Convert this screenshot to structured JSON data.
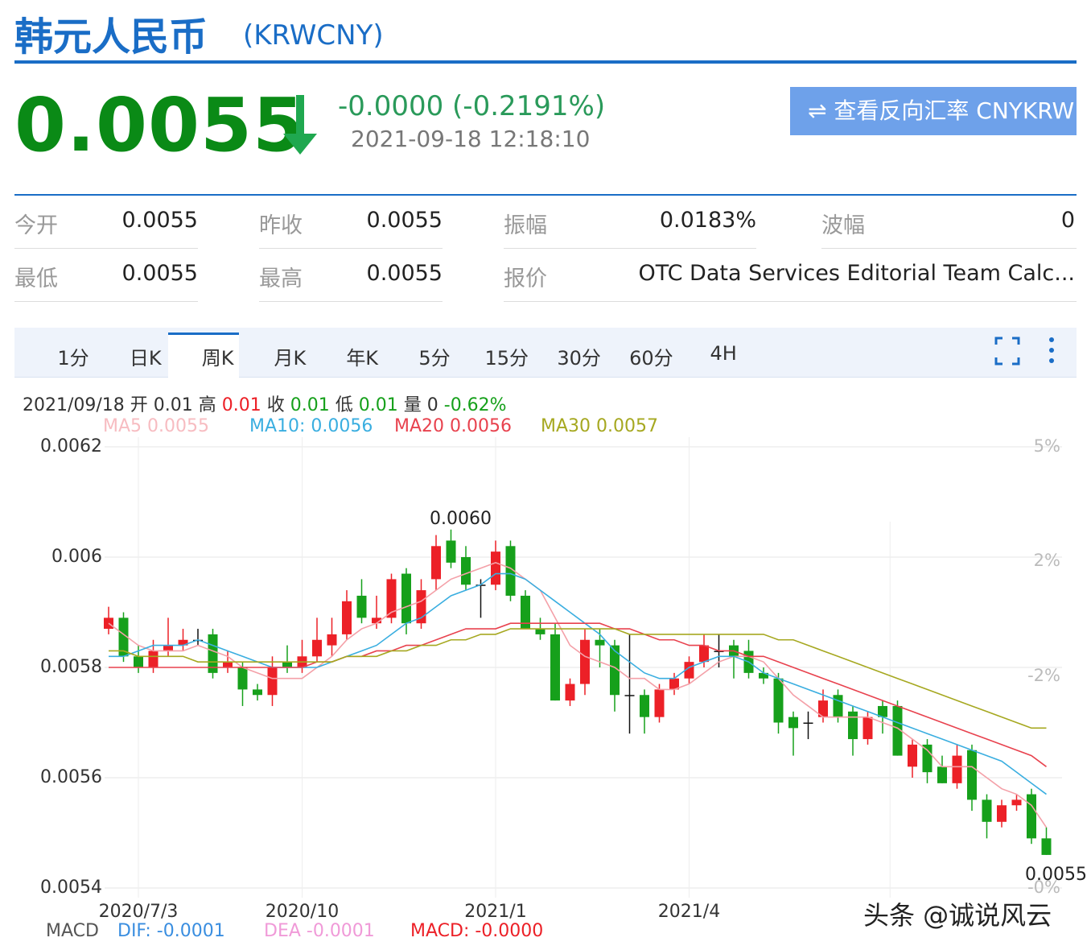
{
  "header": {
    "title": "韩元人民币",
    "code": "(KRWCNY)",
    "price": "0.0055",
    "change": "-0.0000 (-0.2191%)",
    "time": "2021-09-18 12:18:10",
    "button": "查看反向汇率 CNYKRW"
  },
  "stats": {
    "rows": [
      [
        "今开",
        "0.0055",
        "昨收",
        "0.0055",
        "振幅",
        "0.0183%",
        "波幅",
        "0"
      ],
      [
        "最低",
        "0.0055",
        "最高",
        "0.0055",
        "报价",
        "OTC Data Services Editorial Team Calc..."
      ]
    ]
  },
  "tabs": {
    "items": [
      "1分",
      "日K",
      "周K",
      "月K",
      "年K",
      "5分",
      "15分",
      "30分",
      "60分",
      "4H"
    ],
    "active": 2
  },
  "ohlc_info": [
    "2021/09/18 开 0.01 高",
    "0.01",
    "收",
    "0.01",
    "低",
    "0.01",
    "量 0",
    "-0.62%"
  ],
  "macd": [
    "MACD",
    "DIF: -0.0001",
    "DEA -0.0001",
    "MACD: -0.0000"
  ],
  "right_axis_labels": [
    "5%",
    "2%",
    "-2%",
    "-0%"
  ],
  "watermark": "头条 @诚说风云",
  "chart_data": {
    "type": "candlestick",
    "ylim": [
      0.0054,
      0.0062
    ],
    "yticks": [
      0.0062,
      0.006,
      0.0058,
      0.0056,
      0.0054
    ],
    "grid": true,
    "up_color": "#ec2027",
    "down_color": "#16a01b",
    "flat_color": "#111111",
    "categories": [
      null,
      null,
      "2020/7/3",
      null,
      null,
      null,
      null,
      null,
      null,
      null,
      null,
      null,
      null,
      "2020/10",
      null,
      null,
      null,
      null,
      null,
      null,
      null,
      null,
      null,
      null,
      null,
      null,
      "2021/1",
      null,
      null,
      null,
      null,
      null,
      null,
      null,
      null,
      null,
      null,
      null,
      null,
      "2021/4",
      null,
      null,
      null,
      null,
      null,
      null,
      null,
      null,
      null,
      null,
      null,
      null,
      null,
      null,
      null,
      null,
      null,
      null,
      null,
      null,
      null,
      null,
      null,
      null
    ],
    "open": [
      0.00587,
      0.00589,
      0.00582,
      0.0058,
      0.00583,
      0.00584,
      0.00585,
      0.00586,
      0.0058,
      0.0058,
      0.00576,
      0.00575,
      0.00581,
      0.0058,
      0.00582,
      0.00584,
      0.00586,
      0.00593,
      0.00588,
      0.00589,
      0.00597,
      0.00588,
      0.00596,
      0.00603,
      0.006,
      0.00595,
      0.00595,
      0.00602,
      0.00593,
      0.00587,
      0.00586,
      0.00574,
      0.00577,
      0.00585,
      0.00584,
      0.00575,
      0.00575,
      0.00571,
      0.00576,
      0.00578,
      0.00581,
      0.00583,
      0.00584,
      0.00583,
      0.00579,
      0.00578,
      0.00571,
      0.0057,
      0.00571,
      0.00575,
      0.00572,
      0.00567,
      0.00573,
      0.00573,
      0.00562,
      0.00566,
      0.00562,
      0.00559,
      0.00565,
      0.00556,
      0.00552,
      0.00555,
      0.00557,
      0.00549
    ],
    "high": [
      0.00591,
      0.0059,
      0.00584,
      0.00585,
      0.00589,
      0.00587,
      0.00587,
      0.00587,
      0.00583,
      0.00581,
      0.00577,
      0.00582,
      0.00584,
      0.00585,
      0.00589,
      0.00589,
      0.00594,
      0.00596,
      0.00593,
      0.00597,
      0.00598,
      0.00596,
      0.00604,
      0.00605,
      0.00602,
      0.00596,
      0.00603,
      0.00603,
      0.00594,
      0.00589,
      0.00588,
      0.00578,
      0.00587,
      0.00587,
      0.00585,
      0.00586,
      0.00576,
      0.00577,
      0.00579,
      0.00582,
      0.00586,
      0.00586,
      0.00585,
      0.00585,
      0.0058,
      0.00579,
      0.00572,
      0.00572,
      0.00576,
      0.00576,
      0.00573,
      0.00572,
      0.00574,
      0.00574,
      0.00567,
      0.00567,
      0.00564,
      0.00566,
      0.00566,
      0.00557,
      0.00556,
      0.00557,
      0.00558,
      0.00551
    ],
    "low": [
      0.00586,
      0.00581,
      0.00579,
      0.00579,
      0.00582,
      0.00583,
      0.00584,
      0.00578,
      0.00579,
      0.00573,
      0.00574,
      0.00573,
      0.00579,
      0.00579,
      0.00581,
      0.00582,
      0.00585,
      0.00588,
      0.00587,
      0.00588,
      0.00586,
      0.00587,
      0.00594,
      0.00598,
      0.00594,
      0.00589,
      0.00594,
      0.00592,
      0.00587,
      0.00585,
      0.00574,
      0.00573,
      0.00575,
      0.0058,
      0.00572,
      0.00568,
      0.00568,
      0.0057,
      0.00575,
      0.00577,
      0.0058,
      0.0058,
      0.00578,
      0.00578,
      0.00577,
      0.00568,
      0.00564,
      0.00567,
      0.0057,
      0.0057,
      0.00564,
      0.00566,
      0.00568,
      0.00564,
      0.0056,
      0.00559,
      0.00559,
      0.00558,
      0.00554,
      0.00549,
      0.00551,
      0.00554,
      0.00548,
      0.00546
    ],
    "close": [
      0.00589,
      0.00582,
      0.0058,
      0.00583,
      0.00584,
      0.00585,
      0.00585,
      0.00579,
      0.00581,
      0.00576,
      0.00575,
      0.0058,
      0.0058,
      0.00582,
      0.00585,
      0.00586,
      0.00592,
      0.00589,
      0.00589,
      0.00596,
      0.00588,
      0.00594,
      0.00602,
      0.00599,
      0.00595,
      0.00595,
      0.00601,
      0.00593,
      0.00587,
      0.00586,
      0.00574,
      0.00577,
      0.00585,
      0.00584,
      0.00575,
      0.00575,
      0.00571,
      0.00576,
      0.00578,
      0.00581,
      0.00584,
      0.00583,
      0.00582,
      0.00579,
      0.00578,
      0.0057,
      0.00569,
      0.0057,
      0.00574,
      0.00571,
      0.00567,
      0.00571,
      0.00571,
      0.00564,
      0.00566,
      0.00561,
      0.00559,
      0.00564,
      0.00556,
      0.00552,
      0.00555,
      0.00556,
      0.00549,
      0.00546
    ],
    "series": [
      {
        "name": "MA5 0.0055",
        "color": "#f4a0a8",
        "values": [
          0.00588,
          0.00586,
          0.00584,
          0.00583,
          0.00583,
          0.00583,
          0.00584,
          0.00583,
          0.00582,
          0.0058,
          0.00579,
          0.00578,
          0.00578,
          0.00578,
          0.0058,
          0.00582,
          0.00585,
          0.00587,
          0.00588,
          0.0059,
          0.00591,
          0.00592,
          0.00594,
          0.00596,
          0.00597,
          0.00598,
          0.00599,
          0.00598,
          0.00596,
          0.00594,
          0.00589,
          0.00584,
          0.00582,
          0.00581,
          0.0058,
          0.00578,
          0.00578,
          0.00576,
          0.00576,
          0.00577,
          0.00579,
          0.00581,
          0.00582,
          0.00582,
          0.00581,
          0.00578,
          0.00575,
          0.00573,
          0.00571,
          0.00571,
          0.00571,
          0.00571,
          0.0057,
          0.00569,
          0.00567,
          0.00565,
          0.00562,
          0.00562,
          0.00562,
          0.0056,
          0.00558,
          0.00557,
          0.00555,
          0.00551
        ]
      },
      {
        "name": "MA10: 0.0056",
        "color": "#3aaee0",
        "values": [
          0.00582,
          0.00582,
          0.00583,
          0.00584,
          0.00584,
          0.00584,
          0.00585,
          0.00584,
          0.00583,
          0.00582,
          0.00581,
          0.0058,
          0.0058,
          0.0058,
          0.0058,
          0.00581,
          0.00582,
          0.00583,
          0.00584,
          0.00586,
          0.00588,
          0.00589,
          0.00591,
          0.00593,
          0.00594,
          0.00595,
          0.00597,
          0.00597,
          0.00596,
          0.00594,
          0.00592,
          0.0059,
          0.00588,
          0.00586,
          0.00583,
          0.00581,
          0.00579,
          0.00578,
          0.00578,
          0.0058,
          0.00581,
          0.00582,
          0.00582,
          0.00581,
          0.00579,
          0.00578,
          0.00577,
          0.00576,
          0.00575,
          0.00574,
          0.00573,
          0.00572,
          0.00571,
          0.0057,
          0.00569,
          0.00568,
          0.00567,
          0.00566,
          0.00565,
          0.00564,
          0.00563,
          0.00561,
          0.00559,
          0.00557
        ]
      },
      {
        "name": "MA20 0.0056",
        "color": "#e8424e",
        "values": [
          0.0058,
          0.0058,
          0.0058,
          0.0058,
          0.0058,
          0.0058,
          0.0058,
          0.0058,
          0.0058,
          0.0058,
          0.0058,
          0.0058,
          0.0058,
          0.0058,
          0.00581,
          0.00581,
          0.00582,
          0.00582,
          0.00583,
          0.00583,
          0.00584,
          0.00584,
          0.00585,
          0.00586,
          0.00587,
          0.00587,
          0.00587,
          0.00588,
          0.00588,
          0.00588,
          0.00588,
          0.00588,
          0.00588,
          0.00588,
          0.00587,
          0.00587,
          0.00586,
          0.00585,
          0.00585,
          0.00584,
          0.00584,
          0.00583,
          0.00583,
          0.00582,
          0.00582,
          0.00581,
          0.0058,
          0.00579,
          0.00578,
          0.00577,
          0.00576,
          0.00575,
          0.00574,
          0.00573,
          0.00572,
          0.00571,
          0.0057,
          0.00569,
          0.00568,
          0.00567,
          0.00566,
          0.00565,
          0.00564,
          0.00562
        ]
      },
      {
        "name": "MA30 0.0057",
        "color": "#a6a820",
        "values": [
          0.00583,
          0.00583,
          0.00582,
          0.00582,
          0.00582,
          0.00582,
          0.00581,
          0.00581,
          0.00581,
          0.00581,
          0.00581,
          0.00581,
          0.00581,
          0.00581,
          0.00581,
          0.00581,
          0.00582,
          0.00582,
          0.00582,
          0.00583,
          0.00583,
          0.00584,
          0.00584,
          0.00585,
          0.00585,
          0.00586,
          0.00586,
          0.00587,
          0.00587,
          0.00587,
          0.00587,
          0.00587,
          0.00587,
          0.00587,
          0.00587,
          0.00586,
          0.00586,
          0.00586,
          0.00586,
          0.00586,
          0.00586,
          0.00586,
          0.00586,
          0.00586,
          0.00586,
          0.00585,
          0.00585,
          0.00584,
          0.00583,
          0.00582,
          0.00581,
          0.0058,
          0.00579,
          0.00578,
          0.00577,
          0.00576,
          0.00575,
          0.00574,
          0.00573,
          0.00572,
          0.00571,
          0.0057,
          0.00569,
          0.00569
        ]
      }
    ],
    "annotations": [
      {
        "text": "0.0060",
        "index": 23
      },
      {
        "text": "0.0055",
        "index": 63
      }
    ]
  }
}
